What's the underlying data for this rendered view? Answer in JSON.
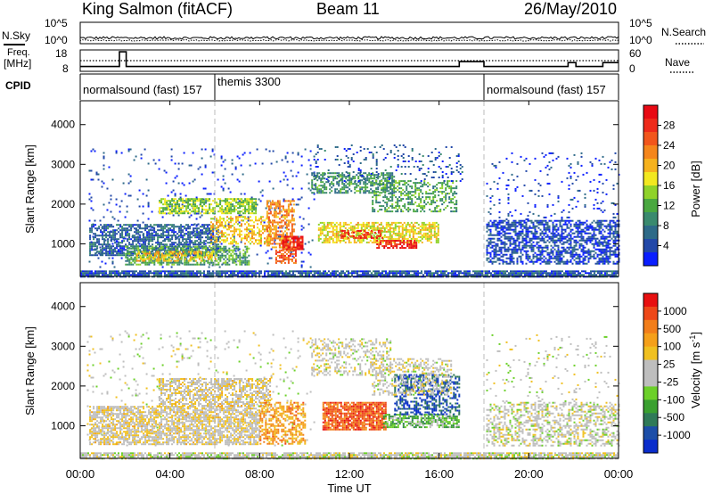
{
  "header": {
    "station": "King Salmon (fitACF)",
    "beam": "Beam 11",
    "date": "26/May/2010"
  },
  "chart_data": [
    {
      "type": "line",
      "panel": "noise",
      "left_label": "N.Sky",
      "right_label": "N.Search",
      "left_ticks": [
        "10^5",
        "10^0"
      ],
      "right_ticks": [
        "10^5",
        "10^0"
      ]
    },
    {
      "type": "line",
      "panel": "frequency",
      "left_label": "Freq.",
      "left_unit": "[MHz]",
      "right_label": "Nave",
      "left_ticks": [
        "18",
        "8"
      ],
      "right_ticks": [
        "60",
        "0"
      ],
      "ylim_freq": [
        8,
        18
      ],
      "freq_steps": [
        {
          "t": 0.0,
          "f": 10
        },
        {
          "t": 1.75,
          "f": 17.5
        },
        {
          "t": 2.05,
          "f": 10
        },
        {
          "t": 16.9,
          "f": 12.5
        },
        {
          "t": 18.0,
          "f": 10
        },
        {
          "t": 21.75,
          "f": 12
        },
        {
          "t": 22.1,
          "f": 10
        },
        {
          "t": 23.3,
          "f": 12
        },
        {
          "t": 24.0,
          "f": 12
        }
      ]
    },
    {
      "type": "table",
      "panel": "cpid",
      "label": "CPID",
      "segments": [
        {
          "start": 0.0,
          "end": 6.0,
          "name": "normalsound (fast) 157"
        },
        {
          "start": 6.0,
          "end": 18.0,
          "name": "themis 3300"
        },
        {
          "start": 18.0,
          "end": 24.0,
          "name": "normalsound (fast) 157"
        }
      ]
    },
    {
      "type": "heatmap",
      "panel": "power",
      "ylabel": "Slant Range [km]",
      "ylim": [
        180,
        4600
      ],
      "yticks": [
        1000,
        2000,
        3000,
        4000
      ],
      "colorbar_label": "Power [dB]",
      "colorbar_ticks": [
        "28",
        "24",
        "20",
        "16",
        "12",
        "8",
        "4"
      ],
      "colorbar_colors": [
        "#0a1eff",
        "#2248a8",
        "#2e6a88",
        "#3a8a6e",
        "#4aa840",
        "#8fd22a",
        "#f2e820",
        "#f6b21e",
        "#f5861c",
        "#f2561c",
        "#ee2a1a",
        "#e80a14"
      ],
      "bands": [
        {
          "t0": 0.3,
          "t1": 10.4,
          "r0": 400,
          "r1": 3400,
          "d": 0.05,
          "lvl": 0.1
        },
        {
          "t0": 0.4,
          "t1": 6.2,
          "r0": 700,
          "r1": 1500,
          "d": 0.65,
          "lvl": 0.18
        },
        {
          "t0": 2.0,
          "t1": 7.5,
          "r0": 500,
          "r1": 950,
          "d": 0.6,
          "lvl": 0.35
        },
        {
          "t0": 2.5,
          "t1": 6.0,
          "r0": 570,
          "r1": 820,
          "d": 0.5,
          "lvl": 0.6
        },
        {
          "t0": 3.5,
          "t1": 7.8,
          "r0": 1750,
          "r1": 2150,
          "d": 0.7,
          "lvl": 0.45
        },
        {
          "t0": 5.8,
          "t1": 8.5,
          "r0": 1000,
          "r1": 1700,
          "d": 0.5,
          "lvl": 0.6
        },
        {
          "t0": 8.3,
          "t1": 9.5,
          "r0": 900,
          "r1": 2100,
          "d": 0.55,
          "lvl": 0.7
        },
        {
          "t0": 9.0,
          "t1": 9.9,
          "r0": 850,
          "r1": 1200,
          "d": 0.8,
          "lvl": 0.9
        },
        {
          "t0": 8.7,
          "t1": 9.6,
          "r0": 500,
          "r1": 900,
          "d": 0.6,
          "lvl": 0.8
        },
        {
          "t0": 10.3,
          "t1": 14.0,
          "r0": 2300,
          "r1": 2800,
          "d": 0.55,
          "lvl": 0.3
        },
        {
          "t0": 13.0,
          "t1": 16.8,
          "r0": 1800,
          "r1": 2600,
          "d": 0.45,
          "lvl": 0.35
        },
        {
          "t0": 10.6,
          "t1": 16.0,
          "r0": 1050,
          "r1": 1550,
          "d": 0.65,
          "lvl": 0.55
        },
        {
          "t0": 11.6,
          "t1": 13.5,
          "r0": 1150,
          "r1": 1350,
          "d": 0.6,
          "lvl": 0.85
        },
        {
          "t0": 13.2,
          "t1": 15.0,
          "r0": 920,
          "r1": 1100,
          "d": 0.7,
          "lvl": 0.9
        },
        {
          "t0": 10.4,
          "t1": 17.0,
          "r0": 2600,
          "r1": 3500,
          "d": 0.12,
          "lvl": 0.15
        },
        {
          "t0": 18.1,
          "t1": 24.0,
          "r0": 500,
          "r1": 1600,
          "d": 0.6,
          "lvl": 0.12
        },
        {
          "t0": 18.1,
          "t1": 24.0,
          "r0": 1600,
          "r1": 3300,
          "d": 0.07,
          "lvl": 0.1
        },
        {
          "t0": 0.0,
          "t1": 24.0,
          "r0": 180,
          "r1": 330,
          "d": 0.85,
          "lvl": 0.15
        }
      ]
    },
    {
      "type": "heatmap",
      "panel": "velocity",
      "xlabel": "Time UT",
      "ylabel": "Slant Range [km]",
      "ylim": [
        180,
        4600
      ],
      "yticks": [
        1000,
        2000,
        3000,
        4000
      ],
      "xticks": [
        "00:00",
        "04:00",
        "08:00",
        "12:00",
        "16:00",
        "20:00",
        "00:00"
      ],
      "xlim_hours": [
        0,
        24
      ],
      "colorbar_label": "Velocity",
      "colorbar_unit": "[m s",
      "colorbar_unit_exp": "-1",
      "colorbar_unit_end": "]",
      "colorbar_ticks": [
        "1000",
        "500",
        "100",
        "25",
        "-25",
        "-100",
        "-500",
        "-1000"
      ],
      "colorbar_colors": [
        "#0a2dcc",
        "#1c4ea8",
        "#2f7a58",
        "#3aa030",
        "#6cd02a",
        "#bebebe",
        "#bebebe",
        "#f0c020",
        "#f5a01a",
        "#f27e1a",
        "#ee4818",
        "#e81010"
      ],
      "bands": [
        {
          "t0": 0.3,
          "t1": 10.4,
          "r0": 500,
          "r1": 3400,
          "d": 0.05,
          "lvl": 0.5
        },
        {
          "t0": 0.4,
          "t1": 8.0,
          "r0": 550,
          "r1": 1500,
          "d": 0.7,
          "lvl": 0.55
        },
        {
          "t0": 3.5,
          "t1": 8.5,
          "r0": 1500,
          "r1": 2200,
          "d": 0.6,
          "lvl": 0.55
        },
        {
          "t0": 8.0,
          "t1": 10.0,
          "r0": 550,
          "r1": 1600,
          "d": 0.55,
          "lvl": 0.72
        },
        {
          "t0": 10.3,
          "t1": 13.8,
          "r0": 2300,
          "r1": 3200,
          "d": 0.35,
          "lvl": 0.52
        },
        {
          "t0": 10.8,
          "t1": 13.6,
          "r0": 900,
          "r1": 1600,
          "d": 0.85,
          "lvl": 0.85
        },
        {
          "t0": 13.5,
          "t1": 16.9,
          "r0": 950,
          "r1": 1300,
          "d": 0.7,
          "lvl": 0.35
        },
        {
          "t0": 14.0,
          "t1": 16.9,
          "r0": 1300,
          "r1": 2300,
          "d": 0.5,
          "lvl": 0.12
        },
        {
          "t0": 13.0,
          "t1": 16.5,
          "r0": 1800,
          "r1": 2700,
          "d": 0.4,
          "lvl": 0.52
        },
        {
          "t0": 18.1,
          "t1": 24.0,
          "r0": 500,
          "r1": 1600,
          "d": 0.45,
          "lvl": 0.5
        },
        {
          "t0": 18.1,
          "t1": 24.0,
          "r0": 1600,
          "r1": 3300,
          "d": 0.05,
          "lvl": 0.5
        },
        {
          "t0": 0.0,
          "t1": 24.0,
          "r0": 180,
          "r1": 330,
          "d": 0.8,
          "lvl": 0.5
        }
      ]
    }
  ]
}
